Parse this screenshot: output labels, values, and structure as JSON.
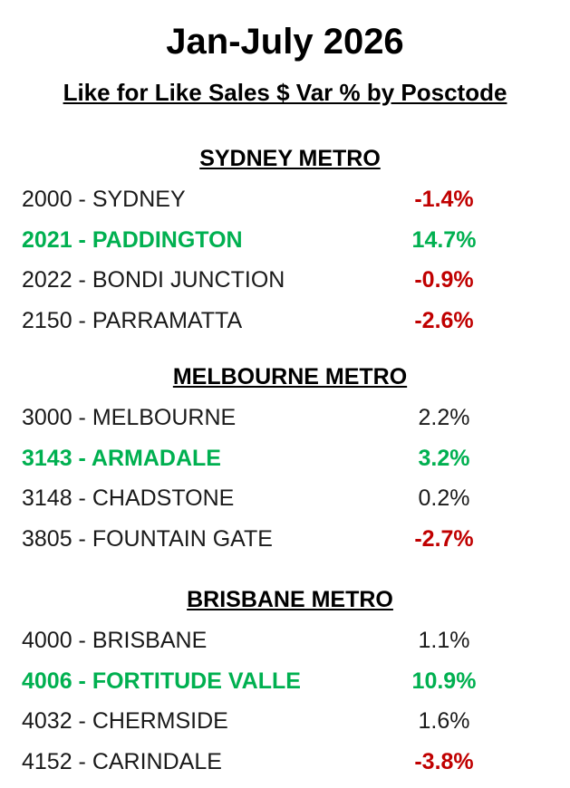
{
  "header": {
    "title": "Jan-July 2026",
    "subtitle": "Like for Like Sales $ Var % by Posctode"
  },
  "sections": [
    {
      "heading": "SYDNEY METRO",
      "rows": [
        {
          "label": "2000 - SYDNEY",
          "value": "-1.4%",
          "label_color": "#1a1a1a",
          "value_color": "#c00000",
          "label_bold": false,
          "value_bold": true
        },
        {
          "label": "2021 - PADDINGTON",
          "value": "14.7%",
          "label_color": "#00b050",
          "value_color": "#00b050",
          "label_bold": true,
          "value_bold": true
        },
        {
          "label": "2022 - BONDI JUNCTION",
          "value": "-0.9%",
          "label_color": "#1a1a1a",
          "value_color": "#c00000",
          "label_bold": false,
          "value_bold": true
        },
        {
          "label": "2150 - PARRAMATTA",
          "value": "-2.6%",
          "label_color": "#1a1a1a",
          "value_color": "#c00000",
          "label_bold": false,
          "value_bold": true
        }
      ]
    },
    {
      "heading": "MELBOURNE METRO",
      "rows": [
        {
          "label": "3000 - MELBOURNE",
          "value": "2.2%",
          "label_color": "#1a1a1a",
          "value_color": "#1a1a1a",
          "label_bold": false,
          "value_bold": false
        },
        {
          "label": "3143 - ARMADALE",
          "value": "3.2%",
          "label_color": "#00b050",
          "value_color": "#00b050",
          "label_bold": true,
          "value_bold": true
        },
        {
          "label": "3148 - CHADSTONE",
          "value": "0.2%",
          "label_color": "#1a1a1a",
          "value_color": "#1a1a1a",
          "label_bold": false,
          "value_bold": false
        },
        {
          "label": "3805 - FOUNTAIN GATE",
          "value": "-2.7%",
          "label_color": "#1a1a1a",
          "value_color": "#c00000",
          "label_bold": false,
          "value_bold": true
        }
      ]
    },
    {
      "heading": "BRISBANE METRO",
      "rows": [
        {
          "label": "4000 - BRISBANE",
          "value": "1.1%",
          "label_color": "#1a1a1a",
          "value_color": "#1a1a1a",
          "label_bold": false,
          "value_bold": false
        },
        {
          "label": "4006 - FORTITUDE VALLE",
          "value": "10.9%",
          "label_color": "#00b050",
          "value_color": "#00b050",
          "label_bold": true,
          "value_bold": true
        },
        {
          "label": "4032 - CHERMSIDE",
          "value": "1.6%",
          "label_color": "#1a1a1a",
          "value_color": "#1a1a1a",
          "label_bold": false,
          "value_bold": false
        },
        {
          "label": "4152 - CARINDALE",
          "value": "-3.8%",
          "label_color": "#1a1a1a",
          "value_color": "#c00000",
          "label_bold": false,
          "value_bold": true
        }
      ]
    }
  ]
}
